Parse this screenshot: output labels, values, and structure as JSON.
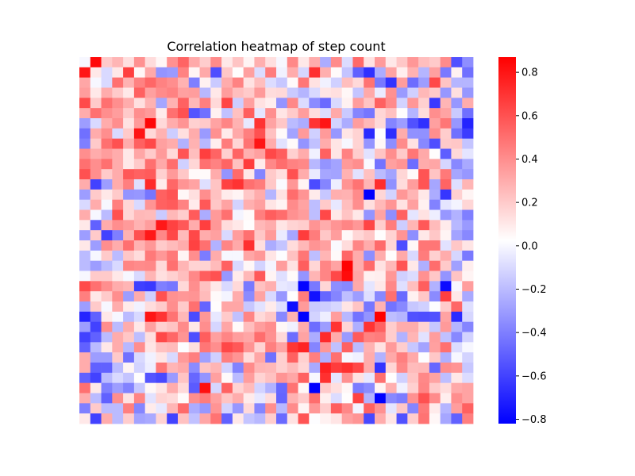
{
  "chart_data": {
    "type": "heatmap",
    "title": "Correlation heatmap of step count",
    "xlabel": "",
    "ylabel": "",
    "n_rows": 36,
    "n_cols": 36,
    "tick_labels_visible": false,
    "colormap": "bwr",
    "colors": {
      "low": "#0000ff",
      "mid": "#ffffff",
      "high": "#ff0000"
    },
    "value_range": [
      -0.82,
      0.87
    ],
    "colorbar": {
      "position": "right",
      "ticks": [
        -0.8,
        -0.6,
        -0.4,
        -0.2,
        0.0,
        0.2,
        0.4,
        0.6,
        0.8
      ],
      "tick_labels": [
        "−0.8",
        "−0.6",
        "−0.4",
        "−0.2",
        "0.0",
        "0.2",
        "0.4",
        "0.6",
        "0.8"
      ]
    },
    "grid": false,
    "values": [
      [
        0.0,
        0.84,
        0.2,
        0.27,
        0.13,
        0.39,
        0.14,
        0.05,
        0.39,
        0.54,
        0.31,
        0.19,
        0.41,
        0.1,
        0.22,
        0.06,
        0.29,
        0.13,
        0.0,
        0.42,
        0.1,
        0.3,
        -0.25,
        0.41,
        -0.09,
        0.52,
        0.12,
        0.36,
        0.1,
        0.21,
        0.37,
        0.24,
        0.2,
        0.41,
        -0.55,
        -0.35
      ],
      [
        0.8,
        0.1,
        -0.1,
        0.1,
        0.66,
        0.05,
        0.31,
        -0.33,
        -0.31,
        0.44,
        0.06,
        0.31,
        -0.56,
        0.21,
        0.03,
        0.34,
        -0.09,
        0.46,
        -0.02,
        0.3,
        -0.11,
        0.71,
        0.29,
        0.04,
        -0.17,
        -0.5,
        -0.66,
        -0.25,
        0.33,
        0.08,
        0.28,
        -0.22,
        0.34,
        -0.42,
        0.07,
        -0.45
      ],
      [
        0.32,
        0.0,
        -0.1,
        0.5,
        0.28,
        0.44,
        0.53,
        0.44,
        0.4,
        0.28,
        -0.4,
        0.07,
        -0.15,
        0.3,
        0.44,
        0.12,
        0.24,
        -0.09,
        -0.16,
        0.04,
        0.48,
        0.12,
        -0.02,
        -0.13,
        0.24,
        0.15,
        0.49,
        -0.42,
        -0.65,
        0.35,
        -0.46,
        -0.3,
        0.63,
        0.22,
        -0.22,
        -0.22
      ],
      [
        0.35,
        0.1,
        0.3,
        0.2,
        0.1,
        0.55,
        0.34,
        0.41,
        0.44,
        0.34,
        0.35,
        -0.21,
        0.1,
        0.35,
        0.24,
        0.2,
        0.36,
        0.14,
        0.15,
        -0.15,
        -0.22,
        -0.1,
        0.11,
        0.13,
        0.05,
        -0.17,
        0.31,
        -0.04,
        0.39,
        -0.31,
        -0.13,
        0.26,
        0.2,
        -0.32,
        0.13,
        -0.32
      ],
      [
        0.62,
        0.2,
        0.5,
        0.4,
        0.3,
        0.13,
        0.28,
        -0.27,
        0.28,
        0.55,
        0.26,
        0.45,
        0.15,
        0.64,
        -0.14,
        0.34,
        0.12,
        0.08,
        -0.33,
        0.42,
        -0.09,
        -0.36,
        -0.47,
        -0.1,
        0.07,
        0.35,
        0.22,
        0.55,
        0.41,
        -0.12,
        0.37,
        0.18,
        -0.63,
        0.27,
        -0.32,
        0.3
      ],
      [
        0.3,
        0.5,
        0.4,
        0.35,
        0.2,
        0.4,
        0.36,
        0.09,
        0.5,
        0.6,
        -0.54,
        -0.45,
        0.07,
        -0.18,
        0.23,
        0.56,
        -0.06,
        0.4,
        0.11,
        0.2,
        0.35,
        0.13,
        -0.09,
        0.31,
        -0.15,
        -0.38,
        -0.43,
        0.16,
        0.23,
        0.03,
        -0.22,
        0.14,
        0.4,
        0.33,
        -0.15,
        -0.45
      ],
      [
        -0.3,
        -0.1,
        0.3,
        0.4,
        0.12,
        0.36,
        0.85,
        0.15,
        0.3,
        0.38,
        0.18,
        0.2,
        0.33,
        0.43,
        0.28,
        -0.05,
        0.7,
        0.33,
        0.21,
        -0.2,
        -0.25,
        0.7,
        0.8,
        -0.12,
        -0.25,
        0.35,
        0.26,
        0.15,
        -0.38,
        -0.3,
        -0.55,
        -0.66,
        0.34,
        0.48,
        -0.32,
        -0.7
      ],
      [
        -0.45,
        0.3,
        0.4,
        -0.1,
        0.2,
        0.8,
        0.15,
        0.28,
        -0.14,
        0.13,
        0.3,
        -0.31,
        0.39,
        0.09,
        0.31,
        0.45,
        0.6,
        0.23,
        0.04,
        -0.28,
        0.36,
        -0.13,
        0.36,
        -0.32,
        0.11,
        0.17,
        -0.68,
        0.02,
        -0.67,
        0.3,
        -0.34,
        -0.34,
        0.4,
        0.19,
        -0.45,
        -0.62
      ],
      [
        -0.4,
        0.2,
        0.5,
        0.6,
        0.3,
        0.55,
        0.63,
        0.34,
        0.3,
        -0.23,
        0.28,
        -0.21,
        0.08,
        0.46,
        0.16,
        0.49,
        0.8,
        0.3,
        -0.07,
        0.04,
        -0.33,
        -0.18,
        0.3,
        0.11,
        0.0,
        0.17,
        -0.33,
        0.05,
        -0.35,
        0.41,
        0.12,
        -0.37,
        -0.56,
        0.2,
        0.21,
        -0.17
      ],
      [
        0.4,
        0.3,
        0.35,
        0.3,
        0.1,
        0.32,
        0.2,
        0.36,
        0.15,
        0.59,
        0.24,
        0.66,
        0.54,
        0.18,
        0.54,
        0.29,
        0.34,
        0.63,
        0.56,
        0.18,
        0.3,
        -0.02,
        0.55,
        0.11,
        0.44,
        0.19,
        -0.07,
        0.22,
        0.4,
        0.2,
        0.48,
        0.31,
        0.03,
        -0.51,
        0.15,
        -0.06
      ],
      [
        0.5,
        0.4,
        0.5,
        0.3,
        0.1,
        0.2,
        0.5,
        0.31,
        0.51,
        -0.13,
        0.16,
        0.5,
        0.44,
        0.54,
        0.23,
        0.67,
        0.09,
        0.42,
        0.51,
        0.44,
        0.42,
        -0.21,
        -0.33,
        -0.28,
        0.36,
        0.4,
        0.01,
        -0.44,
        0.34,
        0.38,
        -0.46,
        0.3,
        0.32,
        -0.11,
        -0.37,
        -0.26
      ],
      [
        0.6,
        0.4,
        0.2,
        0.3,
        0.58,
        0.55,
        0.57,
        0.18,
        0.36,
        0.21,
        0.04,
        0.04,
        0.3,
        -0.33,
        0.52,
        0.1,
        -0.38,
        0.2,
        0.13,
        0.6,
        0.3,
        -0.04,
        -0.27,
        -0.28,
        0.28,
        -0.07,
        0.23,
        -0.2,
        -0.28,
        0.16,
        0.04,
        0.59,
        0.22,
        0.47,
        -0.27,
        -0.32
      ],
      [
        0.3,
        -0.6,
        -0.3,
        0.3,
        0.45,
        -0.08,
        0.73,
        0.09,
        0.53,
        0.38,
        0.33,
        -0.08,
        0.22,
        0.65,
        0.7,
        0.5,
        0.46,
        0.21,
        0.01,
        0.37,
        0.06,
        -0.57,
        -0.38,
        -0.03,
        0.38,
        0.49,
        0.27,
        0.72,
        -0.34,
        0.14,
        0.35,
        0.59,
        -0.27,
        0.54,
        -0.08,
        0.27
      ],
      [
        -0.3,
        0.2,
        0.1,
        0.2,
        -0.33,
        -0.32,
        -0.43,
        0.55,
        0.59,
        0.05,
        0.13,
        0.4,
        0.23,
        0.09,
        0.06,
        0.21,
        0.3,
        -0.22,
        0.12,
        0.51,
        0.38,
        0.09,
        -0.16,
        0.29,
        0.28,
        0.41,
        -0.82,
        0.16,
        -0.12,
        0.37,
        0.27,
        0.1,
        -0.25,
        -0.64,
        0.18,
        0.06
      ],
      [
        -0.1,
        0.3,
        0.0,
        0.45,
        0.16,
        -0.1,
        0.38,
        0.55,
        0.57,
        0.44,
        0.09,
        0.58,
        0.21,
        0.33,
        -0.12,
        0.29,
        0.34,
        0.11,
        0.06,
        0.41,
        0.33,
        -0.19,
        0.2,
        -0.05,
        0.24,
        0.4,
        0.13,
        0.26,
        0.38,
        0.12,
        0.34,
        0.07,
        -0.39,
        -0.06,
        -0.01,
        0.16
      ],
      [
        0.3,
        0.0,
        -0.2,
        0.6,
        0.16,
        0.26,
        0.25,
        -0.15,
        0.26,
        0.19,
        0.57,
        -0.25,
        0.36,
        0.5,
        -0.01,
        0.04,
        0.45,
        0.56,
        0.51,
        0.39,
        0.35,
        -0.19,
        0.63,
        0.1,
        0.22,
        0.1,
        -0.33,
        0.33,
        -0.35,
        0.55,
        -0.06,
        0.12,
        -0.03,
        -0.32,
        -0.23,
        -0.4
      ],
      [
        0.1,
        -0.5,
        0.3,
        0.4,
        0.36,
        0.28,
        0.35,
        0.79,
        0.65,
        0.58,
        0.3,
        0.66,
        0.37,
        0.14,
        0.1,
        0.03,
        0.26,
        0.3,
        0.11,
        0.17,
        0.19,
        0.38,
        0.3,
        0.38,
        0.43,
        0.37,
        0.64,
        0.19,
        0.46,
        -0.14,
        0.27,
        0.58,
        0.25,
        0.09,
        -0.21,
        -0.31
      ],
      [
        -0.3,
        0.2,
        -0.6,
        -0.4,
        0.28,
        0.6,
        0.79,
        0.42,
        0.63,
        0.25,
        0.63,
        0.3,
        0.34,
        -0.1,
        0.35,
        0.5,
        0.21,
        0.36,
        -0.04,
        -0.27,
        0.67,
        0.46,
        0.21,
        0.35,
        0.05,
        0.16,
        0.21,
        0.03,
        0.17,
        0.38,
        -0.35,
        0.1,
        0.21,
        0.06,
        -0.28,
        -0.37
      ],
      [
        0.1,
        -0.3,
        0.4,
        0.3,
        0.5,
        0.28,
        0.37,
        0.2,
        0.25,
        0.3,
        0.65,
        0.5,
        -0.23,
        0.43,
        0.31,
        0.71,
        0.13,
        -0.25,
        -0.17,
        0.14,
        0.26,
        0.38,
        0.34,
        0.01,
        0.14,
        0.43,
        0.3,
        0.52,
        0.16,
        -0.56,
        0.05,
        0.48,
        0.48,
        -0.07,
        0.21,
        0.11
      ],
      [
        -0.2,
        0.0,
        0.2,
        -0.2,
        0.21,
        0.14,
        0.47,
        0.37,
        0.47,
        0.06,
        0.4,
        -0.41,
        0.3,
        0.0,
        0.0,
        0.32,
        0.37,
        0.11,
        0.02,
        0.23,
        0.48,
        -0.19,
        0.27,
        0.04,
        0.53,
        0.3,
        -0.35,
        0.3,
        0.03,
        0.31,
        -0.1,
        0.46,
        0.18,
        0.3,
        -0.11,
        -0.42
      ],
      [
        -0.2,
        -0.3,
        -0.2,
        -0.1,
        0.43,
        0.41,
        0.42,
        0.15,
        0.5,
        0.27,
        0.17,
        0.17,
        0.25,
        0.55,
        -0.1,
        0.05,
        -0.12,
        -0.01,
        0.35,
        0.12,
        0.56,
        0.16,
        0.43,
        0.33,
        0.86,
        0.3,
        0.52,
        0.12,
        0.26,
        0.59,
        0.1,
        -0.24,
        0.51,
        0.2,
        -0.29,
        0.08
      ],
      [
        0.0,
        0.2,
        0.2,
        0.1,
        0.0,
        -0.1,
        0.27,
        0.13,
        0.18,
        0.24,
        0.42,
        0.56,
        0.6,
        -0.32,
        0.09,
        0.26,
        0.58,
        0.06,
        -0.08,
        0.04,
        -0.33,
        0.27,
        0.43,
        0.63,
        0.83,
        0.32,
        0.07,
        0.08,
        0.37,
        -0.13,
        -0.09,
        0.39,
        0.21,
        -0.33,
        0.22,
        0.06
      ],
      [
        0.62,
        0.5,
        0.4,
        0.3,
        0.27,
        -0.61,
        -0.63,
        -0.4,
        -0.43,
        0.15,
        0.4,
        0.23,
        0.1,
        -0.1,
        0.15,
        -0.42,
        0.23,
        0.29,
        -0.05,
        -0.07,
        -0.81,
        -0.42,
        0.16,
        -0.35,
        -0.37,
        0.31,
        -0.06,
        0.1,
        0.42,
        -0.08,
        0.24,
        0.56,
        -0.23,
        -0.78,
        0.0,
        0.35
      ],
      [
        0.45,
        0.1,
        0.2,
        0.4,
        -0.3,
        0.3,
        -0.13,
        0.6,
        0.39,
        0.37,
        0.38,
        0.25,
        0.04,
        -0.01,
        0.3,
        -0.36,
        0.33,
        -0.1,
        -0.32,
        0.03,
        0.46,
        -0.76,
        -0.48,
        -0.38,
        -0.19,
        -0.3,
        -0.08,
        -0.37,
        0.5,
        -0.47,
        0.07,
        0.21,
        -0.36,
        0.66,
        0.1,
        -0.26
      ],
      [
        -0.3,
        0.2,
        0.0,
        0.3,
        0.09,
        -0.02,
        0.14,
        0.2,
        0.4,
        0.2,
        0.5,
        -0.49,
        0.03,
        0.32,
        0.32,
        -0.16,
        -0.07,
        0.09,
        -0.08,
        -0.77,
        0.36,
        -0.15,
        -0.14,
        -0.11,
        0.11,
        0.22,
        -0.43,
        0.28,
        -0.44,
        -0.37,
        -0.16,
        -0.13,
        0.02,
        0.2,
        0.53,
        -0.08
      ],
      [
        -0.7,
        -0.5,
        0.1,
        0.0,
        -0.2,
        -0.1,
        0.8,
        0.7,
        0.49,
        0.26,
        -0.57,
        0.37,
        -0.05,
        0.2,
        -0.18,
        0.43,
        0.15,
        0.21,
        -0.37,
        0.28,
        -0.82,
        -0.12,
        -0.03,
        0.35,
        -0.21,
        -0.44,
        -0.33,
        0.87,
        -0.19,
        -0.22,
        -0.55,
        -0.56,
        -0.55,
        0.33,
        -0.68,
        -0.11
      ],
      [
        -0.3,
        -0.6,
        0.4,
        -0.2,
        0.3,
        0.1,
        0.34,
        0.18,
        0.22,
        0.41,
        0.1,
        0.4,
        -0.11,
        0.32,
        0.04,
        0.24,
        0.35,
        0.4,
        0.05,
        -0.02,
        0.3,
        -0.46,
        -0.3,
        0.7,
        0.16,
        -0.24,
        0.7,
        0.55,
        0.19,
        0.3,
        0.3,
        0.17,
        -0.16,
        0.36,
        -0.22,
        -0.38
      ],
      [
        -0.6,
        -0.5,
        -0.2,
        0.3,
        0.21,
        -0.19,
        0.13,
        0.63,
        0.53,
        0.38,
        -0.56,
        0.56,
        0.34,
        0.43,
        0.35,
        0.32,
        0.51,
        0.39,
        0.15,
        -0.46,
        0.33,
        -0.25,
        0.73,
        0.3,
        -0.31,
        0.57,
        0.44,
        0.46,
        0.19,
        -0.23,
        0.27,
        -0.07,
        0.35,
        -0.18,
        -0.37,
        -0.12
      ],
      [
        -0.5,
        -0.2,
        0.1,
        0.3,
        -0.21,
        0.4,
        0.11,
        0.23,
        0.25,
        0.02,
        0.13,
        0.48,
        0.4,
        0.63,
        0.58,
        0.38,
        0.17,
        0.45,
        0.33,
        0.69,
        0.75,
        -0.38,
        0.37,
        -0.18,
        0.55,
        -0.2,
        0.28,
        0.12,
        0.36,
        0.19,
        -0.16,
        -0.28,
        0.34,
        0.5,
        -0.09,
        0.0
      ],
      [
        0.3,
        -0.3,
        -0.3,
        0.2,
        -0.45,
        -0.1,
        -0.02,
        0.11,
        -0.1,
        0.36,
        0.45,
        -0.29,
        -0.13,
        0.45,
        0.38,
        0.14,
        0.32,
        -0.45,
        0.18,
        0.55,
        0.18,
        0.45,
        -0.24,
        0.5,
        0.0,
        -0.02,
        0.3,
        -0.23,
        0.31,
        0.45,
        0.31,
        0.02,
        0.21,
        -0.24,
        0.0,
        -0.12
      ],
      [
        0.3,
        -0.5,
        -0.5,
        -0.2,
        0.06,
        -0.12,
        -0.03,
        0.48,
        0.27,
        0.31,
        -0.36,
        0.22,
        0.27,
        -0.12,
        -0.39,
        0.41,
        0.27,
        0.26,
        0.18,
        0.25,
        0.16,
        -0.26,
        0.76,
        0.67,
        0.71,
        0.63,
        0.3,
        -0.65,
        0.16,
        0.42,
        0.25,
        0.26,
        -0.48,
        0.4,
        0.38,
        -0.16
      ],
      [
        -0.5,
        -0.6,
        -0.2,
        -0.1,
        -0.17,
        0.03,
        -0.54,
        -0.58,
        -0.31,
        0.22,
        -0.48,
        -0.33,
        0.34,
        0.04,
        -0.2,
        0.35,
        0.17,
        0.23,
        0.38,
        0.32,
        0.55,
        0.0,
        0.71,
        -0.06,
        0.39,
        0.12,
        -0.05,
        0.5,
        0.03,
        -0.13,
        0.22,
        0.42,
        0.33,
        -0.19,
        0.1,
        -0.09
      ],
      [
        0.5,
        0.1,
        -0.4,
        -0.3,
        -0.39,
        -0.16,
        0.05,
        0.11,
        0.3,
        0.15,
        -0.52,
        0.82,
        -0.11,
        0.55,
        0.17,
        0.25,
        -0.12,
        -0.23,
        -0.48,
        0.49,
        0.05,
        -0.82,
        0.2,
        0.13,
        0.05,
        -0.41,
        -0.36,
        0.06,
        0.29,
        -0.02,
        0.18,
        0.43,
        0.2,
        0.14,
        0.31,
        0.33
      ],
      [
        0.3,
        -0.2,
        -0.5,
        0.4,
        0.12,
        0.43,
        -0.07,
        0.17,
        0.15,
        0.04,
        0.4,
        0.46,
        0.34,
        0.22,
        0.3,
        0.09,
        -0.05,
        0.14,
        -0.49,
        0.28,
        0.2,
        0.51,
        0.08,
        -0.09,
        0.03,
        0.65,
        -0.23,
        -0.82,
        -0.37,
        -0.41,
        0.39,
        0.6,
        0.41,
        0.08,
        0.4,
        0.33
      ],
      [
        -0.4,
        0.2,
        -0.2,
        -0.2,
        0.45,
        -0.38,
        0.09,
        -0.05,
        0.27,
        0.52,
        -0.25,
        -0.32,
        0.38,
        -0.12,
        -0.32,
        0.15,
        -0.38,
        0.4,
        -0.21,
        0.41,
        0.06,
        0.37,
        0.19,
        0.56,
        0.42,
        -0.01,
        0.55,
        0.39,
        -0.06,
        0.21,
        -0.38,
        0.47,
        0.09,
        -0.22,
        0.35,
        0.55
      ],
      [
        0.1,
        -0.6,
        0.3,
        -0.2,
        0.19,
        -0.28,
        -0.26,
        0.17,
        -0.6,
        0.23,
        -0.18,
        0.32,
        0.49,
        -0.5,
        0.1,
        -0.17,
        -0.21,
        0.19,
        -0.47,
        0.12,
        0.59,
        0.02,
        0.07,
        0.11,
        0.34,
        0.38,
        -0.58,
        0.3,
        0.11,
        -0.55,
        0.19,
        0.49,
        0.05,
        -0.27,
        -0.5,
        0.45
      ]
    ]
  }
}
